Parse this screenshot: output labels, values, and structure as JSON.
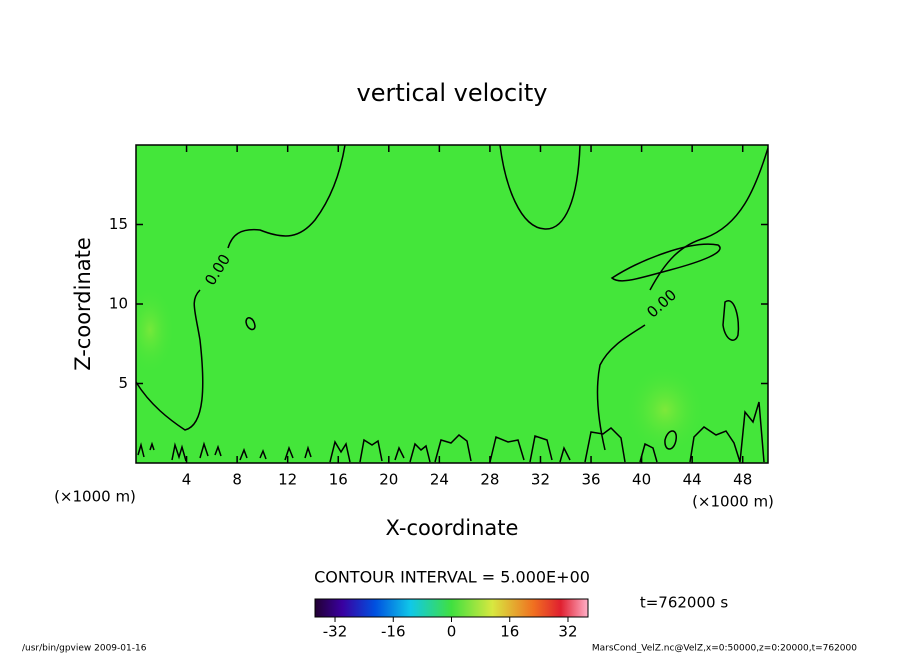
{
  "chart_data": {
    "type": "contour",
    "title": "vertical velocity",
    "xlabel": "X-coordinate",
    "ylabel": "Z-coordinate",
    "x_unit": "(×1000 m)",
    "xlim": [
      0,
      50
    ],
    "ylim": [
      0,
      20
    ],
    "xticks": [
      4,
      8,
      12,
      16,
      20,
      24,
      28,
      32,
      36,
      40,
      44,
      48
    ],
    "yticks": [
      5,
      10,
      15
    ],
    "contour_levels": [
      {
        "value": 0,
        "label": "0.00"
      }
    ],
    "contour_interval_text": "CONTOUR INTERVAL = 5.000E+00",
    "fill_color": "#44e63a",
    "colorbar": {
      "lim": [
        -37.5,
        37.5
      ],
      "ticks": [
        -32,
        -16,
        0,
        16,
        32
      ]
    },
    "time_text": "t=762000 s",
    "footer_left": "/usr/bin/gpview  2009-01-16",
    "footer_right": "MarsCond_VelZ.nc@VelZ,x=0:50000,z=0:20000,t=762000"
  }
}
